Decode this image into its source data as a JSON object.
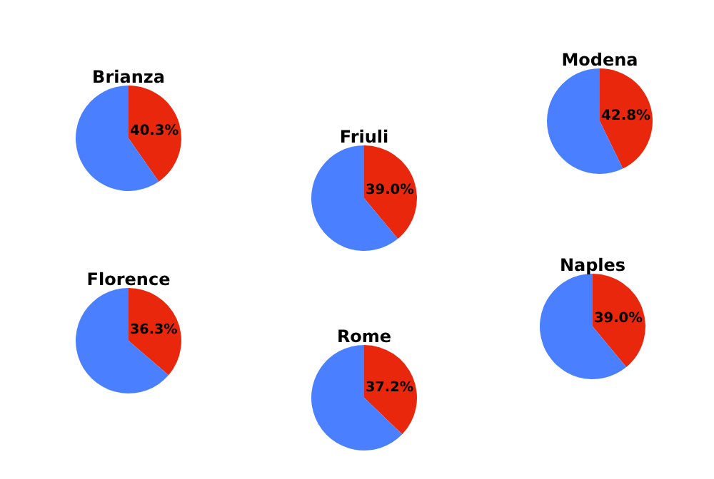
{
  "chart_data": [
    {
      "type": "pie",
      "title": "Brianza",
      "categories": [
        null,
        null
      ],
      "values": [
        40.3,
        59.7
      ],
      "colors": [
        "#e8270c",
        "#4a80ff"
      ],
      "value_labels": [
        "40.3%",
        null
      ]
    },
    {
      "type": "pie",
      "title": "Friuli",
      "categories": [
        null,
        null
      ],
      "values": [
        39.0,
        61.0
      ],
      "colors": [
        "#e8270c",
        "#4a80ff"
      ],
      "value_labels": [
        "39.0%",
        null
      ]
    },
    {
      "type": "pie",
      "title": "Modena",
      "categories": [
        null,
        null
      ],
      "values": [
        42.8,
        57.2
      ],
      "colors": [
        "#e8270c",
        "#4a80ff"
      ],
      "value_labels": [
        "42.8%",
        null
      ]
    },
    {
      "type": "pie",
      "title": "Florence",
      "categories": [
        null,
        null
      ],
      "values": [
        36.3,
        63.7
      ],
      "colors": [
        "#e8270c",
        "#4a80ff"
      ],
      "value_labels": [
        "36.3%",
        null
      ]
    },
    {
      "type": "pie",
      "title": "Rome",
      "categories": [
        null,
        null
      ],
      "values": [
        37.2,
        62.8
      ],
      "colors": [
        "#e8270c",
        "#4a80ff"
      ],
      "value_labels": [
        "37.2%",
        null
      ]
    },
    {
      "type": "pie",
      "title": "Naples",
      "categories": [
        null,
        null
      ],
      "values": [
        39.0,
        61.0
      ],
      "colors": [
        "#e8270c",
        "#4a80ff"
      ],
      "value_labels": [
        "39.0%",
        null
      ]
    }
  ]
}
